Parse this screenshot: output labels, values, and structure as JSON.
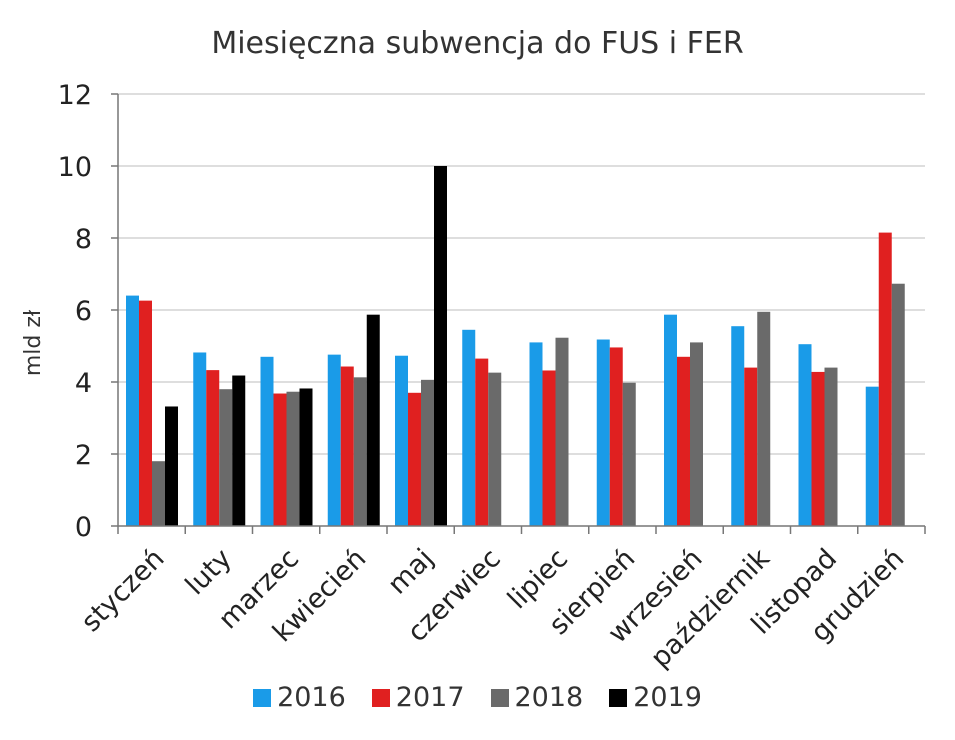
{
  "chart_data": {
    "type": "bar",
    "title": "Miesięczna subwencja do FUS i FER",
    "ylabel": "mld zł",
    "xlabel": "",
    "ylim": [
      0,
      12
    ],
    "yticks": [
      0,
      2,
      4,
      6,
      8,
      10,
      12
    ],
    "grid": true,
    "legend_position": "bottom",
    "categories": [
      "styczeń",
      "luty",
      "marzec",
      "kwiecień",
      "maj",
      "czerwiec",
      "lipiec",
      "sierpień",
      "wrzesień",
      "październik",
      "listopad",
      "grudzień"
    ],
    "series": [
      {
        "name": "2016",
        "color": "#1a9be8",
        "values": [
          6.4,
          4.82,
          4.7,
          4.76,
          4.73,
          5.45,
          5.1,
          5.18,
          5.87,
          5.55,
          5.05,
          3.87
        ]
      },
      {
        "name": "2017",
        "color": "#e02020",
        "values": [
          6.26,
          4.33,
          3.68,
          4.43,
          3.7,
          4.65,
          4.32,
          4.96,
          4.7,
          4.4,
          4.28,
          8.15
        ]
      },
      {
        "name": "2018",
        "color": "#6a6a6a",
        "values": [
          1.8,
          3.8,
          3.73,
          4.13,
          4.06,
          4.26,
          5.23,
          3.98,
          5.1,
          5.95,
          4.4,
          6.73
        ]
      },
      {
        "name": "2019",
        "color": "#000000",
        "values": [
          3.32,
          4.18,
          3.82,
          5.87,
          10.0,
          null,
          null,
          null,
          null,
          null,
          null,
          null
        ]
      }
    ]
  }
}
